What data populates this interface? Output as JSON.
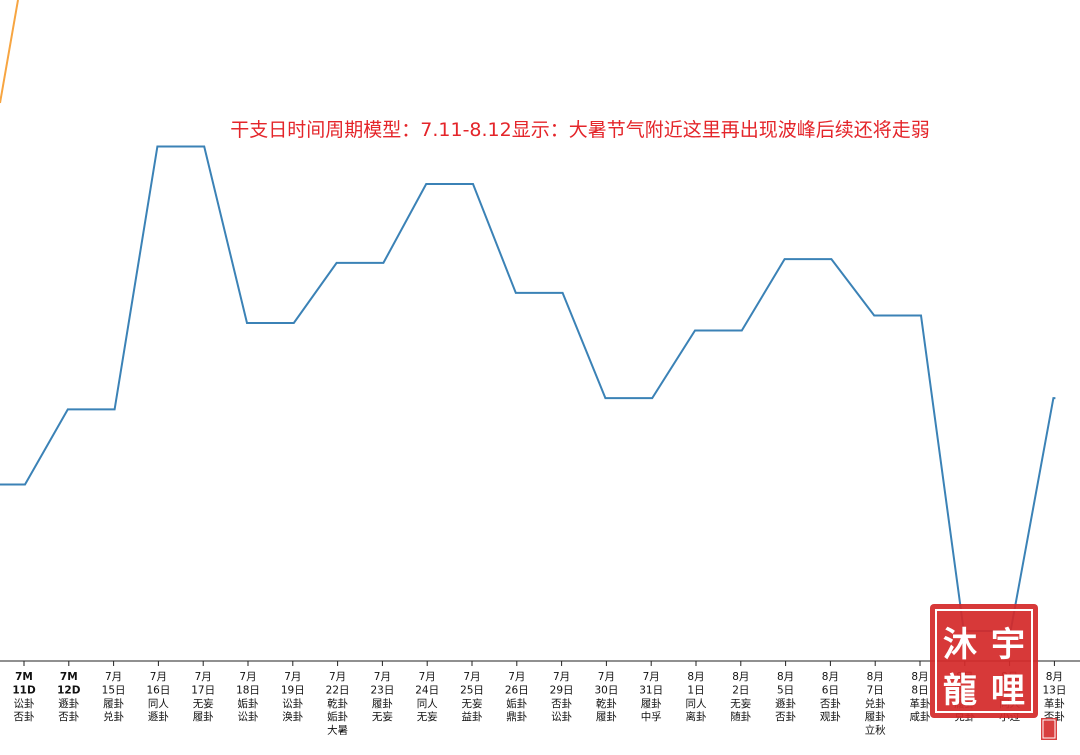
{
  "chart_data": {
    "type": "line",
    "title": "干支日时间周期模型：7.11-8.12显示：大暑节气附近这里再出现波峰后续还将走弱",
    "xlabel": "",
    "ylabel": "",
    "grid": false,
    "legend": "none",
    "categories": [
      [
        "7M",
        "11D",
        "讼卦",
        "否卦"
      ],
      [
        "7M",
        "12D",
        "遯卦",
        "否卦"
      ],
      [
        "7月",
        "15日",
        "履卦",
        "兑卦"
      ],
      [
        "7月",
        "16日",
        "同人",
        "遯卦"
      ],
      [
        "7月",
        "17日",
        "无妄",
        "履卦"
      ],
      [
        "7月",
        "18日",
        "姤卦",
        "讼卦"
      ],
      [
        "7月",
        "19日",
        "讼卦",
        "涣卦"
      ],
      [
        "7月",
        "22日",
        "乾卦",
        "姤卦",
        "大暑"
      ],
      [
        "7月",
        "23日",
        "履卦",
        "无妄"
      ],
      [
        "7月",
        "24日",
        "同人",
        "无妄"
      ],
      [
        "7月",
        "25日",
        "无妄",
        "益卦"
      ],
      [
        "7月",
        "26日",
        "姤卦",
        "鼎卦"
      ],
      [
        "7月",
        "29日",
        "否卦",
        "讼卦"
      ],
      [
        "7月",
        "30日",
        "乾卦",
        "履卦"
      ],
      [
        "7月",
        "31日",
        "履卦",
        "中孚"
      ],
      [
        "8月",
        "1日",
        "同人",
        "离卦"
      ],
      [
        "8月",
        "2日",
        "无妄",
        "随卦"
      ],
      [
        "8月",
        "5日",
        "遯卦",
        "否卦"
      ],
      [
        "8月",
        "6日",
        "否卦",
        "观卦"
      ],
      [
        "8月",
        "7日",
        "兑卦",
        "履卦",
        "立秋"
      ],
      [
        "8月",
        "8日",
        "革卦",
        "咸卦"
      ],
      [
        "8月",
        "9日",
        "履卦",
        "兑卦"
      ],
      [
        "8月",
        "12日",
        "同人",
        "小过"
      ],
      [
        "8月",
        "13日",
        "革卦",
        "否卦"
      ]
    ],
    "series": [
      {
        "values": [
          2.35,
          3.35,
          3.35,
          6.85,
          6.85,
          4.5,
          4.5,
          5.3,
          5.3,
          6.35,
          6.35,
          4.9,
          4.9,
          3.5,
          3.5,
          4.4,
          4.4,
          5.35,
          5.35,
          4.6,
          4.6,
          0.4,
          0.4,
          3.5
        ]
      }
    ],
    "ylim": [
      0,
      8.8
    ],
    "colors": {
      "line": "#3b82b6",
      "orange": "#f7a541",
      "title": "#e4252a",
      "seal": "#d42a2a"
    }
  },
  "seal": {
    "chars": [
      "沐",
      "宇",
      "龍",
      "哩"
    ]
  }
}
